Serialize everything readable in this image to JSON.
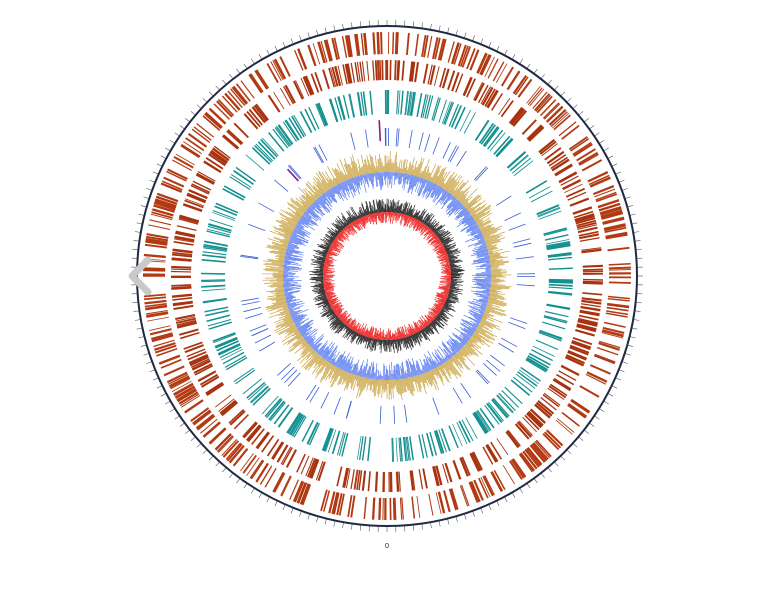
{
  "viewer": {
    "nav_prev_icon": "chevron-left-icon",
    "origin_label": "0"
  },
  "colors": {
    "outer_ring": "#1f2a44",
    "cds_forward": "#b23a12",
    "cds_reverse": "#a9330f",
    "rna_track": "#149090",
    "feature_track": "#3a5fd6",
    "feature_highlight": "#8b1a8b",
    "gc_skew_positive": "#c8a03c",
    "gc_skew_negative": "#5a7cf0",
    "gc_content_dark": "#333333",
    "gc_content_red": "#ee3333",
    "nav_arrow": "#c9c9c9"
  }
}
